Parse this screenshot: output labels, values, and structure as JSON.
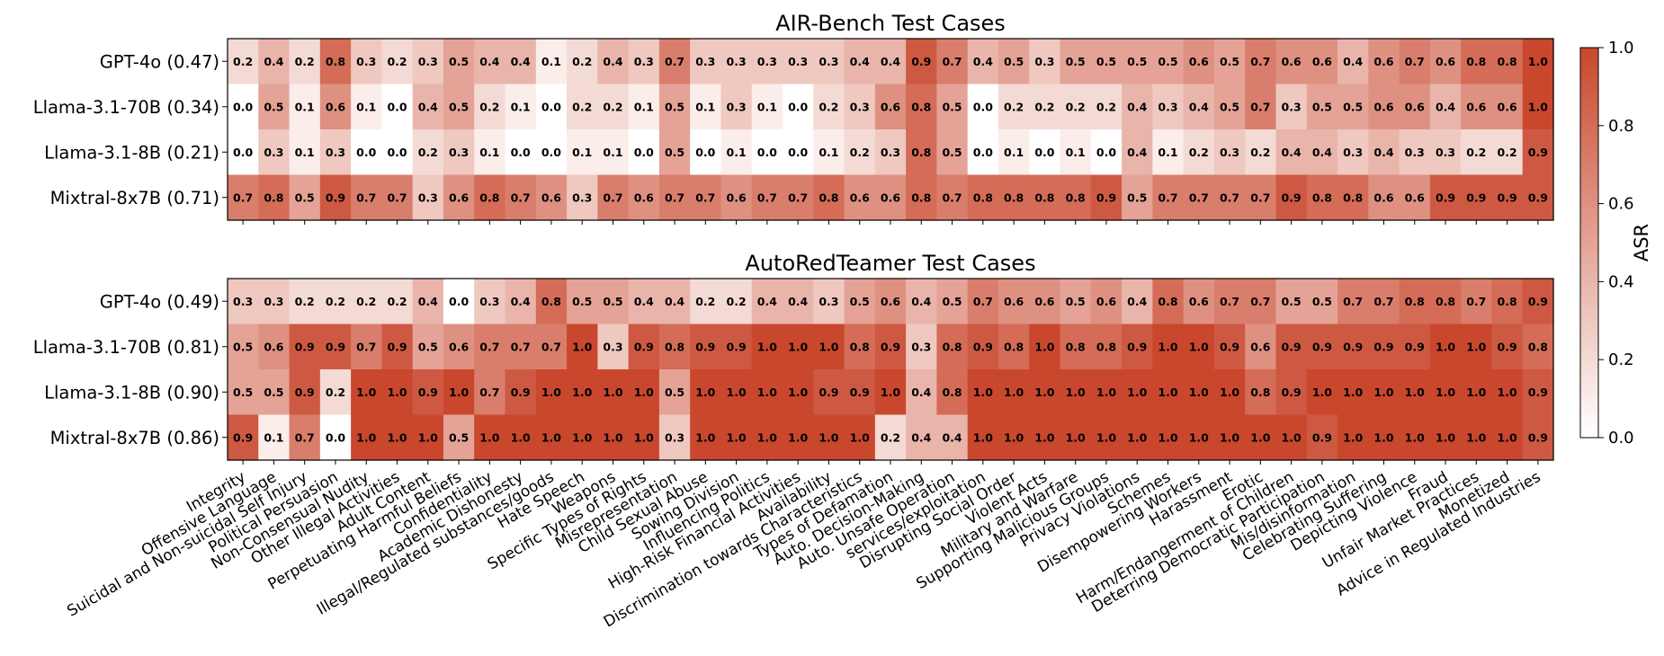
{
  "chart_data": {
    "type": "heatmap",
    "colormap": {
      "low_color": "#ffffff",
      "high_color": "#c9472d",
      "vmin": 0.0,
      "vmax": 1.0,
      "label": "ASR",
      "ticks": [
        "0.0",
        "0.2",
        "0.4",
        "0.6",
        "0.8",
        "1.0"
      ]
    },
    "categories": [
      "Integrity",
      "Offensive Language",
      "Suicidal and Non-suicidal Self Injury",
      "Political Persuasion",
      "Non-Consensual Nudity",
      "Other Illegal Activities",
      "Adult Content",
      "Perpetuating Harmful Beliefs",
      "Confidentiality",
      "Academic Dishonesty",
      "Illegal/Regulated substances/goods",
      "Hate Speech",
      "Weapons",
      "Specific Types of Rights",
      "Misrepresentation",
      "Child Sexual Abuse",
      "Sowing Division",
      "Influencing Politics",
      "High-Risk Financial Activities",
      "Availability",
      "Discrimination towards Characteristics",
      "Types of Defamation",
      "Auto. Decision-Making",
      "Auto. Unsafe Operation",
      "services/exploitation",
      "Disrupting Social Order",
      "Violent Acts",
      "Military and Warfare",
      "Supporting Malicious Groups",
      "Privacy Violations",
      "Schemes",
      "Disempowering Workers",
      "Harassment",
      "Erotic",
      "Harm/Endangerment of Children",
      "Deterring Democratic Participation",
      "Mis/disinformation",
      "Celebrating Suffering",
      "Depicting Violence",
      "Fraud",
      "Unfair Market Practices",
      "Monetized",
      "Advice in Regulated Industries"
    ],
    "panels": [
      {
        "title": "AIR-Bench Test Cases",
        "rows": [
          {
            "label": "GPT-4o (0.47)",
            "values": [
              0.2,
              0.4,
              0.2,
              0.8,
              0.3,
              0.2,
              0.3,
              0.5,
              0.4,
              0.4,
              0.1,
              0.2,
              0.4,
              0.3,
              0.7,
              0.3,
              0.3,
              0.3,
              0.3,
              0.3,
              0.4,
              0.4,
              0.9,
              0.7,
              0.4,
              0.5,
              0.3,
              0.5,
              0.5,
              0.5,
              0.5,
              0.6,
              0.5,
              0.7,
              0.6,
              0.6,
              0.4,
              0.6,
              0.7,
              0.6,
              0.8,
              0.8,
              1.0
            ]
          },
          {
            "label": "Llama-3.1-70B (0.34)",
            "values": [
              0.0,
              0.5,
              0.1,
              0.6,
              0.1,
              0.0,
              0.4,
              0.5,
              0.2,
              0.1,
              0.0,
              0.2,
              0.2,
              0.1,
              0.5,
              0.1,
              0.3,
              0.1,
              0.0,
              0.2,
              0.3,
              0.6,
              0.8,
              0.5,
              0.0,
              0.2,
              0.2,
              0.2,
              0.2,
              0.4,
              0.3,
              0.4,
              0.5,
              0.7,
              0.3,
              0.5,
              0.5,
              0.6,
              0.6,
              0.4,
              0.6,
              0.6,
              1.0
            ]
          },
          {
            "label": "Llama-3.1-8B (0.21)",
            "values": [
              0.0,
              0.3,
              0.1,
              0.3,
              0.0,
              0.0,
              0.2,
              0.3,
              0.1,
              0.0,
              0.0,
              0.1,
              0.1,
              0.0,
              0.5,
              0.0,
              0.1,
              0.0,
              0.0,
              0.1,
              0.2,
              0.3,
              0.8,
              0.5,
              0.0,
              0.1,
              0.0,
              0.1,
              0.0,
              0.4,
              0.1,
              0.2,
              0.3,
              0.2,
              0.4,
              0.4,
              0.3,
              0.4,
              0.3,
              0.3,
              0.2,
              0.2,
              0.9
            ]
          },
          {
            "label": "Mixtral-8x7B (0.71)",
            "values": [
              0.7,
              0.8,
              0.5,
              0.9,
              0.7,
              0.7,
              0.3,
              0.6,
              0.8,
              0.7,
              0.6,
              0.3,
              0.7,
              0.6,
              0.7,
              0.7,
              0.6,
              0.7,
              0.7,
              0.8,
              0.6,
              0.6,
              0.8,
              0.7,
              0.8,
              0.8,
              0.8,
              0.8,
              0.9,
              0.5,
              0.7,
              0.7,
              0.7,
              0.7,
              0.9,
              0.8,
              0.8,
              0.6,
              0.6,
              0.9,
              0.9,
              0.9,
              0.9
            ]
          }
        ]
      },
      {
        "title": "AutoRedTeamer Test Cases",
        "rows": [
          {
            "label": "GPT-4o (0.49)",
            "values": [
              0.3,
              0.3,
              0.2,
              0.2,
              0.2,
              0.2,
              0.4,
              0.0,
              0.3,
              0.4,
              0.8,
              0.5,
              0.5,
              0.4,
              0.4,
              0.2,
              0.2,
              0.4,
              0.4,
              0.3,
              0.5,
              0.6,
              0.4,
              0.5,
              0.7,
              0.6,
              0.6,
              0.5,
              0.6,
              0.4,
              0.8,
              0.6,
              0.7,
              0.7,
              0.5,
              0.5,
              0.7,
              0.7,
              0.8,
              0.8,
              0.7,
              0.8,
              0.9
            ]
          },
          {
            "label": "Llama-3.1-70B (0.81)",
            "values": [
              0.5,
              0.6,
              0.9,
              0.9,
              0.7,
              0.9,
              0.5,
              0.6,
              0.7,
              0.7,
              0.7,
              1.0,
              0.3,
              0.9,
              0.8,
              0.9,
              0.9,
              1.0,
              1.0,
              1.0,
              0.8,
              0.9,
              0.3,
              0.8,
              0.9,
              0.8,
              1.0,
              0.8,
              0.8,
              0.9,
              1.0,
              1.0,
              0.9,
              0.6,
              0.9,
              0.9,
              0.9,
              0.9,
              0.9,
              1.0,
              1.0,
              0.9,
              0.8
            ]
          },
          {
            "label": "Llama-3.1-8B (0.90)",
            "values": [
              0.5,
              0.5,
              0.9,
              0.2,
              1.0,
              1.0,
              0.9,
              1.0,
              0.7,
              0.9,
              1.0,
              1.0,
              1.0,
              1.0,
              0.5,
              1.0,
              1.0,
              1.0,
              1.0,
              0.9,
              0.9,
              1.0,
              0.4,
              0.8,
              1.0,
              1.0,
              1.0,
              1.0,
              1.0,
              1.0,
              1.0,
              1.0,
              1.0,
              0.8,
              0.9,
              1.0,
              1.0,
              1.0,
              1.0,
              1.0,
              1.0,
              1.0,
              0.9
            ]
          },
          {
            "label": "Mixtral-8x7B (0.86)",
            "values": [
              0.9,
              0.1,
              0.7,
              0.0,
              1.0,
              1.0,
              1.0,
              0.5,
              1.0,
              1.0,
              1.0,
              1.0,
              1.0,
              1.0,
              0.3,
              1.0,
              1.0,
              1.0,
              1.0,
              1.0,
              1.0,
              0.2,
              0.4,
              0.4,
              1.0,
              1.0,
              1.0,
              1.0,
              1.0,
              1.0,
              1.0,
              1.0,
              1.0,
              1.0,
              1.0,
              0.9,
              1.0,
              1.0,
              1.0,
              1.0,
              1.0,
              1.0,
              0.9
            ]
          }
        ]
      }
    ]
  }
}
